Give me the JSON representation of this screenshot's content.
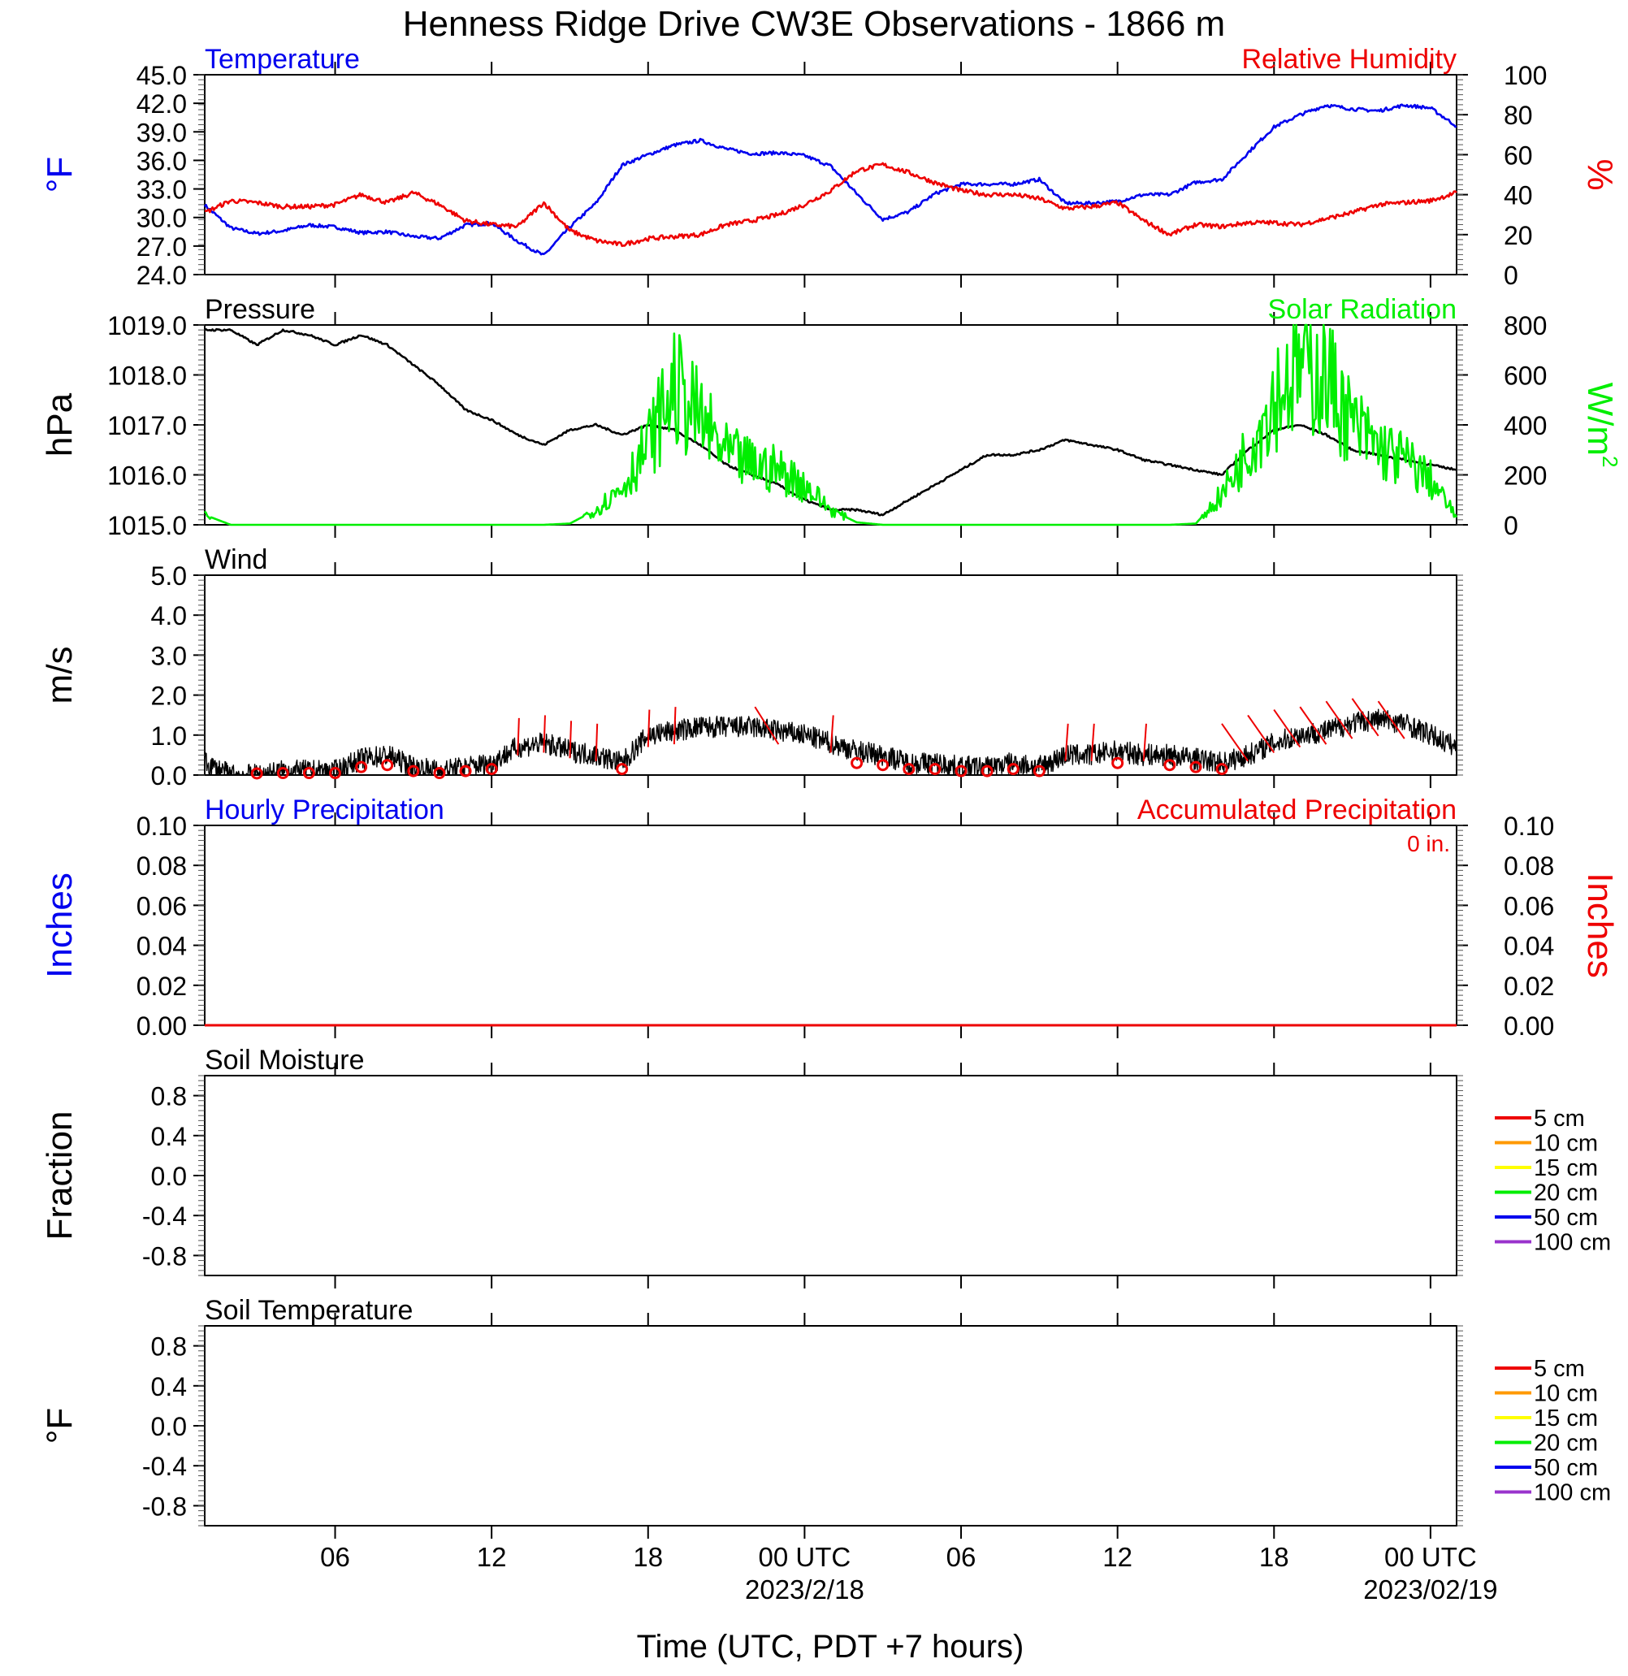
{
  "title": "Henness Ridge Drive CW3E Observations - 1866 m",
  "x_axis": {
    "label": "Time (UTC, PDT +7 hours)",
    "ticks": [
      {
        "hour": 6,
        "label": "06",
        "date": ""
      },
      {
        "hour": 12,
        "label": "12",
        "date": ""
      },
      {
        "hour": 18,
        "label": "18",
        "date": ""
      },
      {
        "hour": 24,
        "label": "00 UTC",
        "date": "2023/2/18"
      },
      {
        "hour": 30,
        "label": "06",
        "date": ""
      },
      {
        "hour": 36,
        "label": "12",
        "date": ""
      },
      {
        "hour": 42,
        "label": "18",
        "date": ""
      },
      {
        "hour": 48,
        "label": "00 UTC",
        "date": "2023/02/19"
      }
    ]
  },
  "colors": {
    "blue": "#0000ee",
    "red": "#ee0000",
    "green": "#00ee00",
    "black": "#000000"
  },
  "chart_data": [
    {
      "type": "line",
      "left_title": "Temperature",
      "right_title": "Relative Humidity",
      "left_unit": "°F",
      "right_unit": "%",
      "ylim": [
        24,
        45
      ],
      "yticks": [
        "45.0",
        "42.0",
        "39.0",
        "36.0",
        "33.0",
        "30.0",
        "27.0",
        "24.0"
      ],
      "ylim_right": [
        0,
        100
      ],
      "yticks_right": [
        "100",
        "80",
        "60",
        "40",
        "20",
        "0"
      ],
      "x": [
        1,
        2,
        3,
        4,
        5,
        6,
        7,
        8,
        9,
        10,
        11,
        12,
        13,
        14,
        15,
        16,
        17,
        18,
        19,
        20,
        21,
        22,
        23,
        24,
        25,
        26,
        27,
        28,
        29,
        30,
        31,
        32,
        33,
        34,
        35,
        36,
        37,
        38,
        39,
        40,
        41,
        42,
        43,
        44,
        45,
        46,
        47,
        48,
        49
      ],
      "series": [
        {
          "name": "Temperature",
          "axis": "left",
          "color": "#0000ee",
          "values": [
            31.3,
            28.9,
            28.3,
            28.6,
            29.2,
            29.0,
            28.4,
            28.5,
            28.0,
            27.8,
            29.2,
            29.4,
            27.5,
            26.0,
            29.0,
            31.5,
            35.5,
            36.6,
            37.6,
            38.1,
            37.2,
            36.7,
            36.8,
            36.5,
            35.4,
            32.5,
            29.8,
            30.6,
            32.5,
            33.5,
            33.5,
            33.5,
            34.0,
            31.5,
            31.5,
            31.7,
            32.4,
            32.4,
            33.7,
            34.0,
            36.8,
            39.5,
            40.8,
            41.8,
            41.4,
            41.2,
            41.8,
            41.5,
            39.6
          ]
        },
        {
          "name": "Relative Humidity",
          "axis": "right",
          "color": "#ee0000",
          "values": [
            31,
            37,
            36,
            34,
            34,
            35,
            40,
            36,
            41,
            35,
            27,
            25,
            24,
            36,
            22,
            17,
            15,
            18,
            19,
            20,
            25,
            27,
            30,
            35,
            42,
            52,
            55,
            51,
            46,
            42,
            40,
            40,
            38,
            33,
            34,
            36,
            27,
            20,
            25,
            24,
            26,
            26,
            25,
            28,
            31,
            35,
            36,
            37,
            41
          ]
        }
      ]
    },
    {
      "type": "line",
      "left_title": "Pressure",
      "right_title": "Solar Radiation",
      "left_unit": "hPa",
      "right_unit": "W/m",
      "right_unit_sup": "2",
      "ylim": [
        1015,
        1019
      ],
      "yticks": [
        "1019.0",
        "1018.0",
        "1017.0",
        "1016.0",
        "1015.0"
      ],
      "ylim_right": [
        0,
        800
      ],
      "yticks_right": [
        "800",
        "600",
        "400",
        "200",
        "0"
      ],
      "x": [
        1,
        2,
        3,
        4,
        5,
        6,
        7,
        8,
        9,
        10,
        11,
        12,
        13,
        14,
        15,
        16,
        17,
        18,
        19,
        20,
        21,
        22,
        23,
        24,
        25,
        26,
        27,
        28,
        29,
        30,
        31,
        32,
        33,
        34,
        35,
        36,
        37,
        38,
        39,
        40,
        41,
        42,
        43,
        44,
        45,
        46,
        47,
        48,
        49
      ],
      "series": [
        {
          "name": "Pressure",
          "axis": "left",
          "color": "#000000",
          "values": [
            1018.9,
            1018.9,
            1018.6,
            1018.9,
            1018.8,
            1018.6,
            1018.8,
            1018.6,
            1018.2,
            1017.8,
            1017.3,
            1017.1,
            1016.8,
            1016.6,
            1016.9,
            1017.0,
            1016.8,
            1017.0,
            1016.9,
            1016.6,
            1016.2,
            1016.0,
            1015.8,
            1015.5,
            1015.3,
            1015.3,
            1015.2,
            1015.5,
            1015.8,
            1016.1,
            1016.4,
            1016.4,
            1016.5,
            1016.7,
            1016.6,
            1016.5,
            1016.3,
            1016.2,
            1016.1,
            1016.0,
            1016.5,
            1016.9,
            1017.0,
            1016.8,
            1016.5,
            1016.4,
            1016.3,
            1016.2,
            1016.1
          ]
        },
        {
          "name": "Solar Radiation",
          "axis": "right",
          "color": "#00ee00",
          "values": [
            40,
            0,
            0,
            0,
            0,
            0,
            0,
            0,
            0,
            0,
            0,
            0,
            0,
            0,
            5,
            60,
            150,
            320,
            550,
            420,
            280,
            240,
            220,
            160,
            60,
            10,
            0,
            0,
            0,
            0,
            0,
            0,
            0,
            0,
            0,
            0,
            0,
            0,
            5,
            120,
            300,
            520,
            640,
            600,
            400,
            310,
            260,
            180,
            30
          ]
        }
      ]
    },
    {
      "type": "line",
      "left_title": "Wind",
      "left_unit": "m/s",
      "ylim": [
        0,
        5
      ],
      "yticks": [
        "5.0",
        "4.0",
        "3.0",
        "2.0",
        "1.0",
        "0.0"
      ],
      "x": [
        1,
        2,
        3,
        4,
        5,
        6,
        7,
        8,
        9,
        10,
        11,
        12,
        13,
        14,
        15,
        16,
        17,
        18,
        19,
        20,
        21,
        22,
        23,
        24,
        25,
        26,
        27,
        28,
        29,
        30,
        31,
        32,
        33,
        34,
        35,
        36,
        37,
        38,
        39,
        40,
        41,
        42,
        43,
        44,
        45,
        46,
        47,
        48,
        49
      ],
      "series": [
        {
          "name": "Wind",
          "axis": "left",
          "color": "#000000",
          "values": [
            0.3,
            0.0,
            0.0,
            0.1,
            0.1,
            0.1,
            0.4,
            0.5,
            0.2,
            0.1,
            0.2,
            0.3,
            0.7,
            0.8,
            0.6,
            0.5,
            0.3,
            1.0,
            1.1,
            1.2,
            1.2,
            1.2,
            1.1,
            1.0,
            0.8,
            0.6,
            0.5,
            0.3,
            0.3,
            0.2,
            0.2,
            0.3,
            0.2,
            0.5,
            0.5,
            0.6,
            0.5,
            0.5,
            0.4,
            0.3,
            0.5,
            0.8,
            1.0,
            1.1,
            1.3,
            1.4,
            1.3,
            1.0,
            0.7
          ]
        }
      ],
      "barbs": {
        "color": "#ee0000",
        "calm_hours": [
          3,
          4,
          5,
          6,
          7,
          8,
          9,
          10,
          11,
          12,
          17,
          26,
          27,
          28,
          29,
          30,
          31,
          32,
          33,
          36,
          38,
          39,
          40
        ],
        "barb_hours": [
          13,
          14,
          15,
          16,
          18,
          19,
          23,
          25,
          34,
          35,
          37,
          41,
          42,
          43,
          44,
          45,
          46,
          47
        ]
      }
    },
    {
      "type": "line",
      "left_title": "Hourly Precipitation",
      "right_title": "Accumulated Precipitation",
      "annotation": "0 in.",
      "left_unit": "Inches",
      "right_unit": "Inches",
      "ylim": [
        0,
        0.1
      ],
      "yticks": [
        "0.10",
        "0.08",
        "0.06",
        "0.04",
        "0.02",
        "0.00"
      ],
      "yticks_right": [
        "0.10",
        "0.08",
        "0.06",
        "0.04",
        "0.02",
        "0.00"
      ],
      "series": [
        {
          "name": "Hourly Precipitation",
          "axis": "left",
          "color": "#0000ee",
          "values": [
            0
          ]
        },
        {
          "name": "Accumulated Precipitation",
          "axis": "right",
          "color": "#ee0000",
          "values": [
            0
          ]
        }
      ]
    },
    {
      "type": "line",
      "left_title": "Soil Moisture",
      "left_unit": "Fraction",
      "ylim": [
        -1,
        1
      ],
      "yticks": [
        "0.8",
        "0.4",
        "0.0",
        "-0.4",
        "-0.8"
      ],
      "legend": [
        {
          "label": "5 cm",
          "color": "#ee0000"
        },
        {
          "label": "10 cm",
          "color": "#ff9900"
        },
        {
          "label": "15 cm",
          "color": "#ffff00"
        },
        {
          "label": "20 cm",
          "color": "#00ee00"
        },
        {
          "label": "50 cm",
          "color": "#0000ee"
        },
        {
          "label": "100 cm",
          "color": "#9933cc"
        }
      ]
    },
    {
      "type": "line",
      "left_title": "Soil Temperature",
      "left_unit": "°F",
      "ylim": [
        -1,
        1
      ],
      "yticks": [
        "0.8",
        "0.4",
        "0.0",
        "-0.4",
        "-0.8"
      ],
      "legend": [
        {
          "label": "5 cm",
          "color": "#ee0000"
        },
        {
          "label": "10 cm",
          "color": "#ff9900"
        },
        {
          "label": "15 cm",
          "color": "#ffff00"
        },
        {
          "label": "20 cm",
          "color": "#00ee00"
        },
        {
          "label": "50 cm",
          "color": "#0000ee"
        },
        {
          "label": "100 cm",
          "color": "#9933cc"
        }
      ]
    }
  ]
}
